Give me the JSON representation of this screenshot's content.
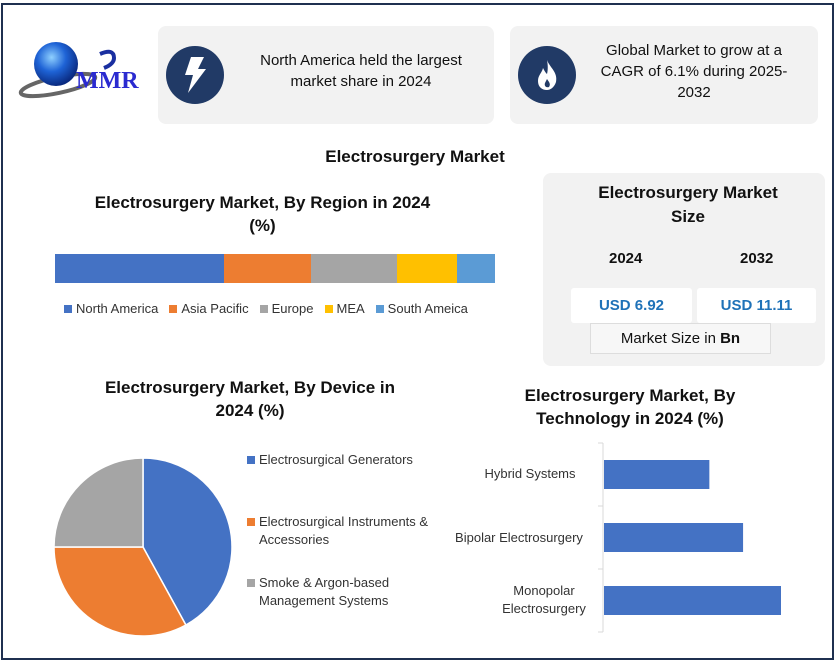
{
  "logo": {
    "text": "MMR"
  },
  "cards": [
    {
      "icon": "lightning-icon",
      "text": "North America held the largest market share in 2024"
    },
    {
      "icon": "flame-icon",
      "text": "Global Market to grow at a CAGR of 6.1% during 2025-2032"
    }
  ],
  "main_title": "Electrosurgery Market",
  "market_size": {
    "title": "Electrosurgery Market Size",
    "year1": "2024",
    "value1": "USD 6.92",
    "year2": "2032",
    "value2": "USD 11.11",
    "unit_prefix": "Market Size in ",
    "unit": "Bn"
  },
  "colors": {
    "navy": "#213a66",
    "blue": "#4472c4",
    "orange": "#ed7d31",
    "gray": "#a5a5a5",
    "yellow": "#ffc000",
    "lightblue": "#5b9bd5",
    "value": "#1f72b8"
  },
  "chart_data": [
    {
      "type": "bar",
      "orientation": "stacked-horizontal",
      "title": "Electrosurgery Market, By Region in 2024 (%)",
      "series": [
        {
          "name": "North America",
          "values": [
            38.4
          ],
          "color": "#4472c4"
        },
        {
          "name": "Asia Pacific",
          "values": [
            19.8
          ],
          "color": "#ed7d31"
        },
        {
          "name": "Europe",
          "values": [
            19.5
          ],
          "color": "#a5a5a5"
        },
        {
          "name": "MEA",
          "values": [
            13.6
          ],
          "color": "#ffc000"
        },
        {
          "name": "South Ameica",
          "values": [
            8.6
          ],
          "color": "#5b9bd5"
        }
      ],
      "legend": "bottom"
    },
    {
      "type": "pie",
      "title": "Electrosurgery Market, By Device in 2024 (%)",
      "categories": [
        "Electrosurgical Generators",
        "Electrosurgical Instruments & Accessories",
        "Smoke & Argon-based Management Systems"
      ],
      "values": [
        42,
        33,
        25
      ],
      "colors": [
        "#4472c4",
        "#ed7d31",
        "#a5a5a5"
      ],
      "legend": "right"
    },
    {
      "type": "bar",
      "orientation": "horizontal",
      "title": "Electrosurgery Market, By Technology in 2024 (%)",
      "categories": [
        "Hybrid Systems",
        "Bipolar Electrosurgery",
        "Monopolar Electrosurgery"
      ],
      "values": [
        25,
        33,
        42
      ],
      "color": "#4472c4"
    }
  ]
}
